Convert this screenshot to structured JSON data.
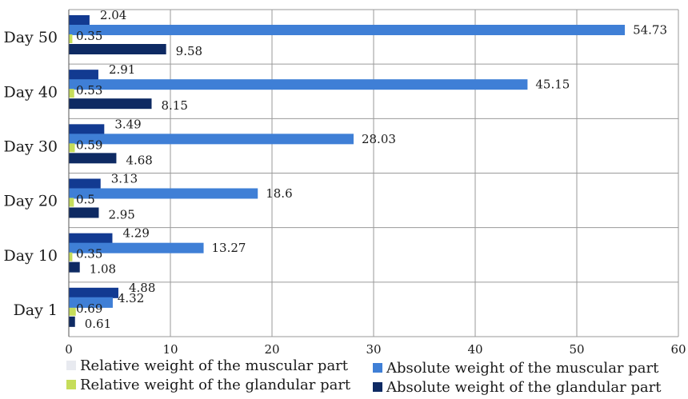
{
  "chart_data": {
    "type": "bar",
    "orientation": "horizontal",
    "categories": [
      "Day 1",
      "Day 10",
      "Day 20",
      "Day 30",
      "Day 40",
      "Day 50"
    ],
    "series": [
      {
        "name": "Relative weight of the muscular part",
        "values": [
          4.32,
          13.27,
          18.6,
          28.03,
          45.15,
          54.73
        ],
        "label_values": [
          "4.32",
          "",
          "",
          "",
          "",
          ""
        ],
        "color": "#e8eaf0"
      },
      {
        "name": "Absolute weight of the muscular part",
        "values": [
          4.32,
          13.27,
          18.6,
          28.03,
          45.15,
          54.73
        ],
        "label_values": [
          "",
          "13.27",
          "18.6",
          "28.03",
          "45.15",
          "54.73"
        ],
        "color": "#3f7fd6"
      },
      {
        "name": "Relative weight of the glandular part",
        "values": [
          0.69,
          0.35,
          0.5,
          0.59,
          0.53,
          0.35
        ],
        "label_values": [
          "0.69",
          "0.35",
          "0.5",
          "0.59",
          "0.53",
          "0.35"
        ],
        "color": "#c6dd5a"
      },
      {
        "name": "Absolute weight of the glandular part",
        "values": [
          0.61,
          1.08,
          2.95,
          4.68,
          8.15,
          9.58
        ],
        "label_values": [
          "0.61",
          "1.08",
          "2.95",
          "4.68",
          "8.15",
          "9.58"
        ],
        "color": "#0e2a63"
      },
      {
        "name": "",
        "values": [
          4.88,
          4.29,
          3.13,
          3.49,
          2.91,
          2.04
        ],
        "label_values": [
          "4.88",
          "4.29",
          "3.13",
          "3.49",
          "2.91",
          "2.04"
        ],
        "color": "#123a91"
      }
    ],
    "xlim": [
      0,
      60
    ],
    "xticks": [
      "0",
      "10",
      "20",
      "30",
      "40",
      "50",
      "60"
    ],
    "grid": true,
    "legend_position": "bottom",
    "legend": [
      {
        "label": "Relative weight of the muscular part",
        "color": "#e8eaf0"
      },
      {
        "label": "Absolute weight of the muscular part",
        "color": "#3f7fd6"
      },
      {
        "label": "Relative weight of the glandular part",
        "color": "#c6dd5a"
      },
      {
        "label": "Absolute weight of the glandular part",
        "color": "#0e2a63"
      }
    ]
  }
}
